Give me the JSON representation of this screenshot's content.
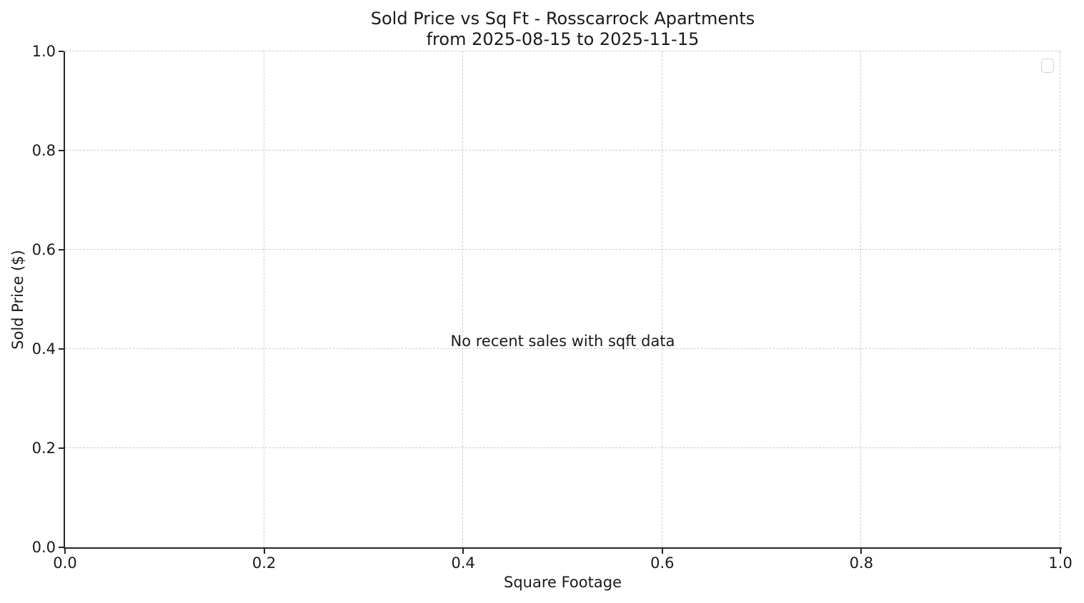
{
  "chart_data": {
    "type": "scatter",
    "title": "Sold Price vs Sq Ft - Rosscarrock Apartments\nfrom 2025-08-15 to 2025-11-15",
    "title_line1": "Sold Price vs Sq Ft - Rosscarrock Apartments",
    "title_line2": "from 2025-08-15 to 2025-11-15",
    "xlabel": "Square Footage",
    "ylabel": "Sold Price ($)",
    "annotation": "No recent sales with sqft data",
    "series": [],
    "points": [],
    "xlim": [
      0.0,
      1.0
    ],
    "ylim": [
      0.0,
      1.0
    ],
    "x_axis": {
      "min": 0.0,
      "max": 1.0,
      "ticks": [
        {
          "value": 0.0,
          "label": "0.0"
        },
        {
          "value": 0.2,
          "label": "0.2"
        },
        {
          "value": 0.4,
          "label": "0.4"
        },
        {
          "value": 0.6,
          "label": "0.6"
        },
        {
          "value": 0.8,
          "label": "0.8"
        },
        {
          "value": 1.0,
          "label": "1.0"
        }
      ]
    },
    "y_axis": {
      "min": 0.0,
      "max": 1.0,
      "ticks": [
        {
          "value": 0.0,
          "label": "0.0"
        },
        {
          "value": 0.2,
          "label": "0.2"
        },
        {
          "value": 0.4,
          "label": "0.4"
        },
        {
          "value": 0.6,
          "label": "0.6"
        },
        {
          "value": 0.8,
          "label": "0.8"
        },
        {
          "value": 1.0,
          "label": "1.0"
        }
      ]
    },
    "grid": {
      "visible": true,
      "style": "dashed",
      "color": "#cdcdcd"
    },
    "legend": {
      "visible": true,
      "entries": []
    },
    "colors": {
      "background": "#ffffff",
      "text": "#1a1a1a",
      "spine": "#262626",
      "grid": "#cdcdcd",
      "legend_border": "#d2d2d2"
    }
  }
}
